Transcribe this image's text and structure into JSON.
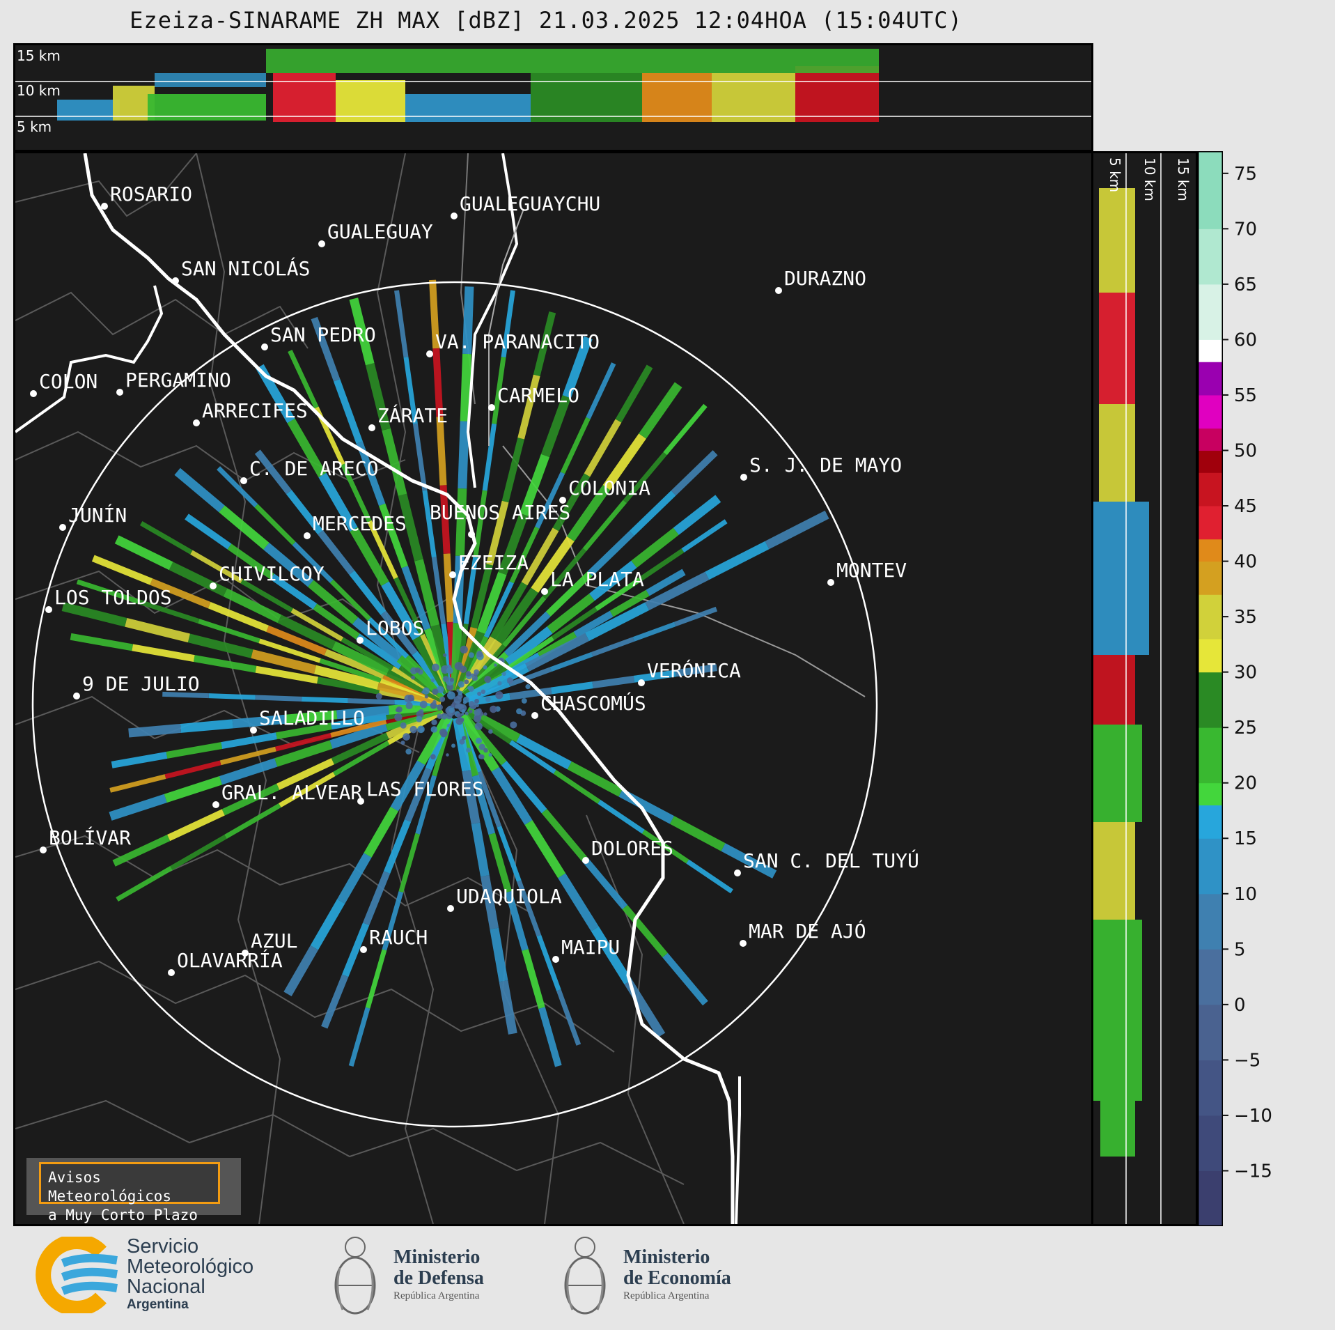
{
  "title": "Ezeiza-SINARAME ZH MAX [dBZ] 21.03.2025 12:04HOA (15:04UTC)",
  "top_panel": {
    "altitude_labels": [
      "15 km",
      "10 km",
      "5 km"
    ]
  },
  "right_panel": {
    "altitude_labels": [
      "5 km",
      "10 km",
      "15 km"
    ]
  },
  "colorbar": {
    "unit": "dBZ",
    "range": [
      -20,
      77
    ],
    "ticks": [
      "75",
      "70",
      "65",
      "60",
      "55",
      "50",
      "45",
      "40",
      "35",
      "30",
      "25",
      "20",
      "15",
      "10",
      "5",
      "0",
      "−5",
      "−10",
      "−15"
    ],
    "tick_values": [
      75,
      70,
      65,
      60,
      55,
      50,
      45,
      40,
      35,
      30,
      25,
      20,
      15,
      10,
      5,
      0,
      -5,
      -10,
      -15
    ],
    "colors": [
      {
        "from": -20,
        "to": -15,
        "color": "#3b3f6e"
      },
      {
        "from": -15,
        "to": -10,
        "color": "#3f4a7a"
      },
      {
        "from": -10,
        "to": -5,
        "color": "#445585"
      },
      {
        "from": -5,
        "to": 0,
        "color": "#4a6290"
      },
      {
        "from": 0,
        "to": 5,
        "color": "#4a6f9e"
      },
      {
        "from": 5,
        "to": 10,
        "color": "#3f80b0"
      },
      {
        "from": 10,
        "to": 15,
        "color": "#2f92c6"
      },
      {
        "from": 15,
        "to": 18,
        "color": "#27a6dc"
      },
      {
        "from": 18,
        "to": 20,
        "color": "#43d63c"
      },
      {
        "from": 20,
        "to": 25,
        "color": "#39b830"
      },
      {
        "from": 25,
        "to": 30,
        "color": "#2a8a24"
      },
      {
        "from": 30,
        "to": 33,
        "color": "#e6e639"
      },
      {
        "from": 33,
        "to": 37,
        "color": "#d1d13a"
      },
      {
        "from": 37,
        "to": 40,
        "color": "#d4a020"
      },
      {
        "from": 40,
        "to": 42,
        "color": "#e08a1a"
      },
      {
        "from": 42,
        "to": 45,
        "color": "#e02030"
      },
      {
        "from": 45,
        "to": 48,
        "color": "#c81420"
      },
      {
        "from": 48,
        "to": 50,
        "color": "#a0000c"
      },
      {
        "from": 50,
        "to": 52,
        "color": "#c80060"
      },
      {
        "from": 52,
        "to": 55,
        "color": "#e000c0"
      },
      {
        "from": 55,
        "to": 58,
        "color": "#9a00b0"
      },
      {
        "from": 58,
        "to": 60,
        "color": "#ffffff"
      },
      {
        "from": 60,
        "to": 65,
        "color": "#d8f2e6"
      },
      {
        "from": 65,
        "to": 70,
        "color": "#b0e8d0"
      },
      {
        "from": 70,
        "to": 77,
        "color": "#8cdcbc"
      }
    ]
  },
  "cities": [
    {
      "name": "ROSARIO"
    },
    {
      "name": "GUALEGUAYCHU"
    },
    {
      "name": "GUALEGUAY"
    },
    {
      "name": "SAN NICOLÁS"
    },
    {
      "name": "DURAZNO"
    },
    {
      "name": "SAN PEDRO"
    },
    {
      "name": "VA. PARANACITO"
    },
    {
      "name": "COLON"
    },
    {
      "name": "PERGAMINO"
    },
    {
      "name": "CARMELO"
    },
    {
      "name": "ARRECIFES"
    },
    {
      "name": "ZÁRATE"
    },
    {
      "name": "C. DE ARECO"
    },
    {
      "name": "S. J. DE MAYO"
    },
    {
      "name": "COLONIA"
    },
    {
      "name": "JUNÍN"
    },
    {
      "name": "BUENOS AIRES"
    },
    {
      "name": "MERCEDES"
    },
    {
      "name": "EZEIZA"
    },
    {
      "name": "MONTEV"
    },
    {
      "name": "CHIVILCOY"
    },
    {
      "name": "LA PLATA"
    },
    {
      "name": "LOS TOLDOS"
    },
    {
      "name": "LOBOS"
    },
    {
      "name": "VERÓNICA"
    },
    {
      "name": "9 DE JULIO"
    },
    {
      "name": "CHASCOMÚS"
    },
    {
      "name": "SALADILLO"
    },
    {
      "name": "GRAL. ALVEAR"
    },
    {
      "name": "LAS FLORES"
    },
    {
      "name": "BOLÍVAR"
    },
    {
      "name": "DOLORES"
    },
    {
      "name": "SAN C. DEL TUYÚ"
    },
    {
      "name": "UDAQUIOLA"
    },
    {
      "name": "MAR DE AJÓ"
    },
    {
      "name": "AZUL"
    },
    {
      "name": "RAUCH"
    },
    {
      "name": "OLAVARRÍA"
    },
    {
      "name": "MAIPU"
    }
  ],
  "badge": {
    "line1": "Avisos Meteorológicos",
    "line2": "a Muy Corto Plazo"
  },
  "logos": {
    "smn": {
      "line1": "Servicio",
      "line2": "Meteorológico",
      "line3": "Nacional",
      "line4": "Argentina"
    },
    "defensa": {
      "line1": "Ministerio",
      "line2": "de Defensa",
      "line3": "República Argentina"
    },
    "economia": {
      "line1": "Ministerio",
      "line2": "de Economía",
      "line3": "República Argentina"
    }
  }
}
